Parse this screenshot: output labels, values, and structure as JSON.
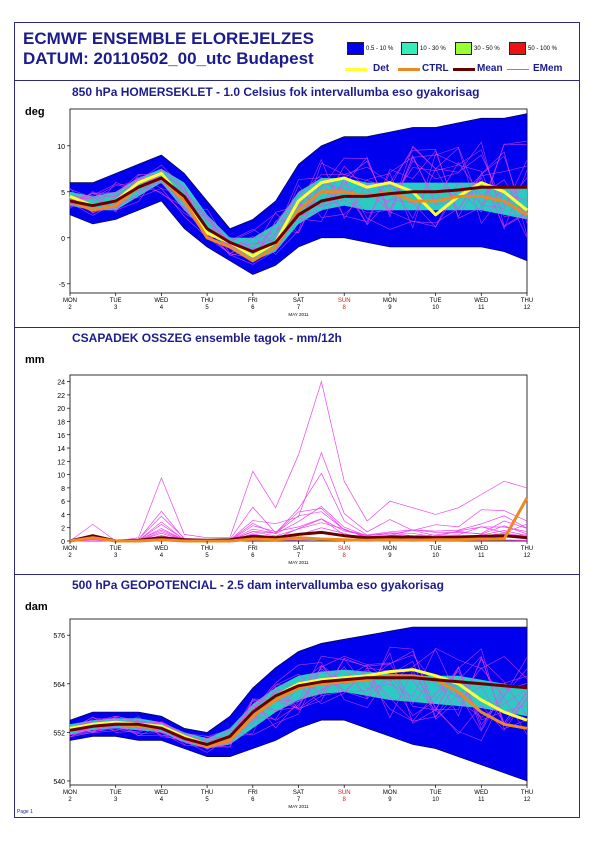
{
  "header": {
    "line1": "ECMWF ENSEMBLE ELOREJELZES",
    "line2": "DATUM: 20110502_00_utc  Budapest"
  },
  "legend": {
    "freq": [
      {
        "label": "0.5 - 10 %",
        "color": "#0000ee"
      },
      {
        "label": "10 - 30 %",
        "color": "#33eebb"
      },
      {
        "label": "30 - 50 %",
        "color": "#99ff33"
      },
      {
        "label": "50 - 100 %",
        "color": "#ee1111"
      }
    ],
    "lines": [
      {
        "label": "Det",
        "color": "#ffff33"
      },
      {
        "label": "CTRL",
        "color": "#ee8822"
      },
      {
        "label": "Mean",
        "color": "#660000"
      },
      {
        "label": "EMem",
        "color": "#ee44ee"
      }
    ]
  },
  "axis": {
    "days": [
      "MON",
      "TUE",
      "WED",
      "THU",
      "FRI",
      "SAT",
      "SUN",
      "MON",
      "TUE",
      "WED",
      "THU"
    ],
    "dates": [
      "2",
      "3",
      "4",
      "5",
      "6",
      "7",
      "8",
      "9",
      "10",
      "11",
      "12"
    ],
    "month": "MAY 2011",
    "weekend_color": "#cc2222"
  },
  "footer": "Page 1",
  "chart_data": [
    {
      "type": "line",
      "title": "850 hPa HOMERSEKLET - 1.0 Celsius fok intervallumba eso gyakorisag",
      "ylabel": "deg",
      "ylim": [
        -6,
        14
      ],
      "yticks": [
        "-5",
        "0",
        "5",
        "10"
      ],
      "ytick_values": [
        -5,
        0,
        5,
        10
      ],
      "x": [
        2,
        2.5,
        3,
        3.5,
        4,
        4.5,
        5,
        5.5,
        6,
        6.5,
        7,
        7.5,
        8,
        8.5,
        9,
        9.5,
        10,
        10.5,
        11,
        11.5,
        12
      ],
      "band_outer": {
        "low": [
          2.5,
          1.5,
          2,
          3,
          4,
          1,
          -1,
          -2.5,
          -4,
          -3,
          -1,
          0,
          0,
          -0.5,
          -1,
          -1,
          -1,
          -1,
          -1,
          -1.5,
          -2.5
        ],
        "high": [
          6,
          6,
          7,
          8,
          9,
          7,
          4,
          1,
          2,
          4,
          8,
          10,
          11,
          11,
          11.5,
          12,
          12,
          12.5,
          13,
          13,
          13.5
        ]
      },
      "band_inner": {
        "low": [
          3.5,
          3,
          3,
          4.5,
          6,
          3,
          0.5,
          -1,
          -2.5,
          -1.5,
          1.5,
          3,
          3.5,
          3,
          3,
          3,
          3,
          3,
          3,
          2.5,
          2
        ],
        "high": [
          5,
          4.5,
          5,
          6.5,
          7.5,
          6,
          2.5,
          0,
          0,
          1.5,
          5,
          6.5,
          6.5,
          6,
          6,
          6,
          6,
          6,
          6,
          5.5,
          5.5
        ]
      },
      "series": [
        {
          "name": "Det",
          "values": [
            4.5,
            3.5,
            4,
            6,
            7,
            4,
            0.5,
            -0.5,
            -2,
            -0.5,
            4,
            6,
            6.5,
            5.5,
            6,
            5,
            2.5,
            4.5,
            6,
            5,
            3
          ]
        },
        {
          "name": "CTRL",
          "values": [
            4,
            3,
            3.5,
            5.5,
            6.5,
            4,
            0,
            -1,
            -2.5,
            -1,
            3,
            5,
            5,
            4.5,
            5,
            4,
            4,
            4.5,
            4.5,
            4,
            2.5
          ]
        },
        {
          "name": "Mean",
          "values": [
            4,
            3.5,
            4,
            5.5,
            6.5,
            4.5,
            1,
            -0.5,
            -1.5,
            -0.5,
            2.5,
            4,
            4.5,
            4.5,
            4.8,
            5,
            5,
            5.2,
            5.5,
            5.5,
            5.5
          ]
        }
      ]
    },
    {
      "type": "line",
      "title": "CSAPADEK OSSZEG ensemble tagok - mm/12h",
      "ylabel": "mm",
      "ylim": [
        0,
        25
      ],
      "yticks": [
        "0",
        "2",
        "4",
        "6",
        "8",
        "10",
        "12",
        "14",
        "16",
        "18",
        "20",
        "22",
        "24"
      ],
      "ytick_values": [
        0,
        2,
        4,
        6,
        8,
        10,
        12,
        14,
        16,
        18,
        20,
        22,
        24
      ],
      "x": [
        2,
        2.5,
        3,
        3.5,
        4,
        4.5,
        5,
        5.5,
        6,
        6.5,
        7,
        7.5,
        8,
        8.5,
        9,
        9.5,
        10,
        10.5,
        11,
        11.5,
        12
      ],
      "max_member": [
        0,
        2.5,
        0,
        0.5,
        9.5,
        1,
        0.5,
        0.5,
        10.5,
        5,
        13,
        24,
        9,
        3,
        6,
        5,
        4,
        5,
        7,
        9,
        8
      ],
      "series": [
        {
          "name": "Mean",
          "values": [
            0,
            0.8,
            0,
            0.1,
            0.5,
            0.2,
            0.1,
            0.2,
            0.7,
            0.5,
            1,
            1.3,
            0.8,
            0.5,
            0.6,
            0.6,
            0.5,
            0.6,
            0.7,
            0.8,
            0.5
          ]
        },
        {
          "name": "CTRL",
          "values": [
            0,
            0.5,
            0,
            0,
            0.2,
            0,
            0,
            0,
            0.3,
            0.2,
            0.5,
            0.3,
            0.2,
            0.1,
            0.2,
            0.1,
            0.2,
            0.2,
            0.3,
            0.3,
            6.5
          ]
        }
      ]
    },
    {
      "type": "line",
      "title": "500 hPa GEOPOTENCIAL - 2.5 dam intervallumba eso gyakorisag",
      "ylabel": "dam",
      "ylim": [
        539,
        580
      ],
      "yticks": [
        "540",
        "552",
        "564",
        "576"
      ],
      "ytick_values": [
        540,
        552,
        564,
        576
      ],
      "x": [
        2,
        2.5,
        3,
        3.5,
        4,
        4.5,
        5,
        5.5,
        6,
        6.5,
        7,
        7.5,
        8,
        8.5,
        9,
        9.5,
        10,
        10.5,
        11,
        11.5,
        12
      ],
      "band_outer": {
        "low": [
          550,
          551,
          551,
          550,
          550,
          548,
          546,
          546,
          548,
          550,
          553,
          555,
          555,
          553,
          551,
          549,
          548,
          546,
          544,
          542,
          540
        ],
        "high": [
          555,
          557,
          557,
          557,
          556,
          553,
          552,
          556,
          563,
          568,
          572,
          574,
          575,
          576,
          577,
          578,
          578,
          578,
          578,
          578,
          578
        ]
      },
      "band_inner": {
        "low": [
          551.5,
          552.5,
          553,
          552.5,
          552,
          549.5,
          548,
          549,
          553,
          557,
          560,
          561.5,
          562,
          561,
          560,
          559.5,
          559,
          558.5,
          558,
          557,
          556
        ],
        "high": [
          554,
          555,
          555.5,
          555.5,
          554.5,
          552,
          550.5,
          553,
          559,
          563,
          566,
          567,
          567.5,
          567,
          566.5,
          566,
          566,
          566,
          565,
          564,
          563
        ]
      },
      "series": [
        {
          "name": "Det",
          "values": [
            553,
            554,
            554.5,
            554,
            553.5,
            551,
            549,
            551,
            557,
            561,
            564,
            565,
            565.5,
            566,
            567,
            567.5,
            566,
            564,
            560,
            557,
            555
          ]
        },
        {
          "name": "CTRL",
          "values": [
            552.5,
            553.5,
            554,
            553.5,
            553,
            550.5,
            548.5,
            550,
            556,
            560,
            563,
            564,
            564.5,
            565,
            566,
            566,
            565,
            562,
            557,
            554,
            553
          ]
        },
        {
          "name": "Mean",
          "values": [
            552.5,
            553.5,
            554,
            554,
            553,
            550.5,
            549,
            551,
            557,
            561,
            563.5,
            564.5,
            565,
            565.5,
            565.5,
            565.5,
            565,
            564.5,
            564,
            563.5,
            563
          ]
        }
      ]
    }
  ]
}
